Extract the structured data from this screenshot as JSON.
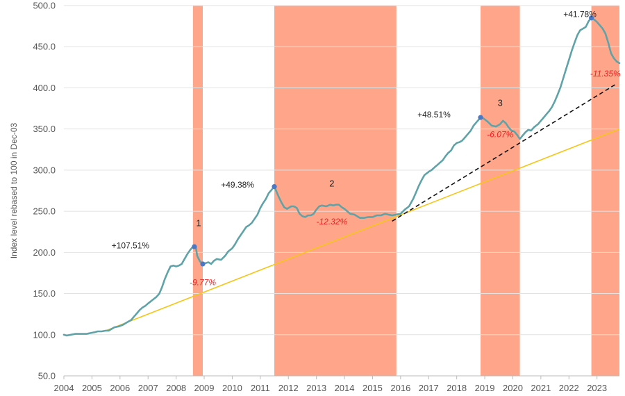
{
  "chart_data": {
    "type": "line",
    "ylabel": "Index level rebased to 100 in Dec-03",
    "xlim": [
      2004.0,
      2023.8
    ],
    "ylim": [
      50,
      500
    ],
    "y_ticks": [
      "50.0",
      "100.0",
      "150.0",
      "200.0",
      "250.0",
      "300.0",
      "350.0",
      "400.0",
      "450.0",
      "500.0"
    ],
    "x_ticks": [
      "2004",
      "2005",
      "2006",
      "2007",
      "2008",
      "2009",
      "2010",
      "2011",
      "2012",
      "2013",
      "2014",
      "2015",
      "2016",
      "2017",
      "2018",
      "2019",
      "2020",
      "2021",
      "2022",
      "2023"
    ],
    "grid": true,
    "colors": {
      "index_line": "#5fa3a8",
      "trend_line": "#f5c518",
      "dashed_trend": "#111111",
      "drawdown_band": "#ffa68a",
      "peak_marker": "#4a78c4",
      "drop_text": "#ee2222"
    },
    "shaded_periods": [
      {
        "label": "1",
        "start": 2008.6,
        "end": 2008.95
      },
      {
        "label": "2",
        "start": 2011.5,
        "end": 2015.85
      },
      {
        "label": "3",
        "start": 2018.85,
        "end": 2020.25
      },
      {
        "label": "",
        "start": 2022.8,
        "end": 2023.8
      }
    ],
    "series": [
      {
        "type": "line",
        "points": [
          [
            2004.0,
            100
          ],
          [
            2004.1,
            99
          ],
          [
            2004.25,
            100
          ],
          [
            2004.4,
            101
          ],
          [
            2004.6,
            101
          ],
          [
            2004.8,
            101
          ],
          [
            2004.95,
            102
          ],
          [
            2005.1,
            103
          ],
          [
            2005.2,
            104
          ],
          [
            2005.35,
            104
          ],
          [
            2005.5,
            105
          ],
          [
            2005.6,
            105
          ],
          [
            2005.7,
            107
          ],
          [
            2005.8,
            109
          ],
          [
            2005.95,
            110
          ],
          [
            2006.1,
            112
          ],
          [
            2006.25,
            115
          ],
          [
            2006.4,
            118
          ],
          [
            2006.5,
            122
          ],
          [
            2006.6,
            126
          ],
          [
            2006.7,
            130
          ],
          [
            2006.8,
            133
          ],
          [
            2006.9,
            135
          ],
          [
            2007.0,
            138
          ],
          [
            2007.15,
            142
          ],
          [
            2007.3,
            146
          ],
          [
            2007.4,
            150
          ],
          [
            2007.5,
            158
          ],
          [
            2007.6,
            168
          ],
          [
            2007.7,
            176
          ],
          [
            2007.8,
            183
          ],
          [
            2007.9,
            184
          ],
          [
            2008.0,
            183
          ],
          [
            2008.1,
            184
          ],
          [
            2008.2,
            186
          ],
          [
            2008.3,
            192
          ],
          [
            2008.4,
            198
          ],
          [
            2008.5,
            203
          ],
          [
            2008.6,
            207
          ],
          [
            2008.7,
            207
          ],
          [
            2008.75,
            196
          ],
          [
            2008.85,
            189
          ],
          [
            2008.95,
            186
          ],
          [
            2009.05,
            187
          ],
          [
            2009.15,
            188
          ],
          [
            2009.25,
            186
          ],
          [
            2009.35,
            190
          ],
          [
            2009.45,
            192
          ],
          [
            2009.6,
            191
          ],
          [
            2009.75,
            196
          ],
          [
            2009.85,
            201
          ],
          [
            2010.0,
            205
          ],
          [
            2010.1,
            210
          ],
          [
            2010.2,
            216
          ],
          [
            2010.3,
            221
          ],
          [
            2010.4,
            226
          ],
          [
            2010.5,
            231
          ],
          [
            2010.6,
            233
          ],
          [
            2010.7,
            236
          ],
          [
            2010.8,
            241
          ],
          [
            2010.9,
            246
          ],
          [
            2011.0,
            254
          ],
          [
            2011.1,
            260
          ],
          [
            2011.2,
            265
          ],
          [
            2011.3,
            272
          ],
          [
            2011.4,
            276
          ],
          [
            2011.5,
            280
          ],
          [
            2011.55,
            276
          ],
          [
            2011.65,
            268
          ],
          [
            2011.75,
            261
          ],
          [
            2011.85,
            255
          ],
          [
            2011.95,
            253
          ],
          [
            2012.1,
            256
          ],
          [
            2012.2,
            256
          ],
          [
            2012.3,
            254
          ],
          [
            2012.4,
            247
          ],
          [
            2012.5,
            244
          ],
          [
            2012.6,
            243
          ],
          [
            2012.7,
            245
          ],
          [
            2012.8,
            245
          ],
          [
            2012.9,
            247
          ],
          [
            2013.0,
            252
          ],
          [
            2013.1,
            256
          ],
          [
            2013.2,
            257
          ],
          [
            2013.35,
            256
          ],
          [
            2013.5,
            258
          ],
          [
            2013.6,
            257
          ],
          [
            2013.7,
            258
          ],
          [
            2013.8,
            258
          ],
          [
            2013.9,
            255
          ],
          [
            2014.0,
            253
          ],
          [
            2014.1,
            250
          ],
          [
            2014.2,
            247
          ],
          [
            2014.35,
            246
          ],
          [
            2014.45,
            244
          ],
          [
            2014.55,
            242
          ],
          [
            2014.7,
            242
          ],
          [
            2014.85,
            243
          ],
          [
            2015.0,
            243
          ],
          [
            2015.15,
            245
          ],
          [
            2015.3,
            245
          ],
          [
            2015.45,
            247
          ],
          [
            2015.55,
            246
          ],
          [
            2015.7,
            245
          ],
          [
            2015.85,
            246
          ],
          [
            2016.0,
            247
          ],
          [
            2016.15,
            252
          ],
          [
            2016.3,
            256
          ],
          [
            2016.45,
            265
          ],
          [
            2016.55,
            273
          ],
          [
            2016.65,
            281
          ],
          [
            2016.75,
            288
          ],
          [
            2016.85,
            294
          ],
          [
            2017.0,
            298
          ],
          [
            2017.1,
            300
          ],
          [
            2017.2,
            303
          ],
          [
            2017.3,
            306
          ],
          [
            2017.4,
            309
          ],
          [
            2017.5,
            312
          ],
          [
            2017.6,
            317
          ],
          [
            2017.7,
            321
          ],
          [
            2017.8,
            324
          ],
          [
            2017.9,
            330
          ],
          [
            2018.0,
            333
          ],
          [
            2018.1,
            334
          ],
          [
            2018.2,
            336
          ],
          [
            2018.3,
            340
          ],
          [
            2018.4,
            344
          ],
          [
            2018.5,
            348
          ],
          [
            2018.6,
            354
          ],
          [
            2018.7,
            358
          ],
          [
            2018.8,
            362
          ],
          [
            2018.85,
            364
          ],
          [
            2018.95,
            363
          ],
          [
            2019.1,
            359
          ],
          [
            2019.25,
            354
          ],
          [
            2019.4,
            353
          ],
          [
            2019.55,
            356
          ],
          [
            2019.65,
            360
          ],
          [
            2019.75,
            357
          ],
          [
            2019.85,
            352
          ],
          [
            2019.95,
            348
          ],
          [
            2020.05,
            347
          ],
          [
            2020.15,
            343
          ],
          [
            2020.25,
            338
          ],
          [
            2020.35,
            342
          ],
          [
            2020.45,
            346
          ],
          [
            2020.55,
            349
          ],
          [
            2020.65,
            348
          ],
          [
            2020.75,
            352
          ],
          [
            2020.9,
            356
          ],
          [
            2021.0,
            360
          ],
          [
            2021.1,
            364
          ],
          [
            2021.2,
            368
          ],
          [
            2021.3,
            372
          ],
          [
            2021.4,
            377
          ],
          [
            2021.5,
            384
          ],
          [
            2021.6,
            392
          ],
          [
            2021.7,
            401
          ],
          [
            2021.8,
            412
          ],
          [
            2021.9,
            423
          ],
          [
            2022.0,
            434
          ],
          [
            2022.1,
            445
          ],
          [
            2022.2,
            455
          ],
          [
            2022.3,
            464
          ],
          [
            2022.4,
            470
          ],
          [
            2022.5,
            472
          ],
          [
            2022.6,
            474
          ],
          [
            2022.7,
            481
          ],
          [
            2022.8,
            485
          ],
          [
            2022.9,
            483
          ],
          [
            2023.0,
            480
          ],
          [
            2023.1,
            476
          ],
          [
            2023.2,
            472
          ],
          [
            2023.3,
            466
          ],
          [
            2023.4,
            455
          ],
          [
            2023.5,
            442
          ],
          [
            2023.6,
            436
          ],
          [
            2023.7,
            432
          ],
          [
            2023.8,
            430
          ]
        ]
      },
      {
        "type": "trend",
        "points": [
          [
            2005.5,
            105
          ],
          [
            2023.8,
            350
          ]
        ]
      },
      {
        "type": "dashed_trend",
        "points": [
          [
            2015.7,
            238
          ],
          [
            2023.7,
            405
          ]
        ]
      }
    ],
    "markers": [
      [
        2008.65,
        207
      ],
      [
        2008.95,
        186
      ],
      [
        2011.5,
        280
      ],
      [
        2018.85,
        364
      ],
      [
        2022.8,
        485
      ]
    ],
    "annotations": [
      {
        "text": "+107.51%",
        "x": 2005.7,
        "y": 205,
        "kind": "gain",
        "anchor": "start"
      },
      {
        "text": "-9.77%",
        "x": 2008.95,
        "y": 160,
        "kind": "drop",
        "anchor": "middle"
      },
      {
        "text": "1",
        "x": 2008.8,
        "y": 232,
        "kind": "num",
        "anchor": "middle"
      },
      {
        "text": "+49.38%",
        "x": 2009.6,
        "y": 279,
        "kind": "gain",
        "anchor": "start"
      },
      {
        "text": "2",
        "x": 2013.55,
        "y": 280,
        "kind": "num",
        "anchor": "middle"
      },
      {
        "text": "-12.32%",
        "x": 2013.55,
        "y": 234,
        "kind": "drop",
        "anchor": "middle"
      },
      {
        "text": "+48.51%",
        "x": 2016.6,
        "y": 364,
        "kind": "gain",
        "anchor": "start"
      },
      {
        "text": "3",
        "x": 2019.55,
        "y": 378,
        "kind": "num",
        "anchor": "middle"
      },
      {
        "text": "-6.07%",
        "x": 2019.55,
        "y": 340,
        "kind": "drop",
        "anchor": "middle"
      },
      {
        "text": "+41.78%",
        "x": 2021.8,
        "y": 486,
        "kind": "gain",
        "anchor": "start"
      },
      {
        "text": "-11.35%",
        "x": 2023.3,
        "y": 414,
        "kind": "drop",
        "anchor": "middle"
      }
    ]
  }
}
